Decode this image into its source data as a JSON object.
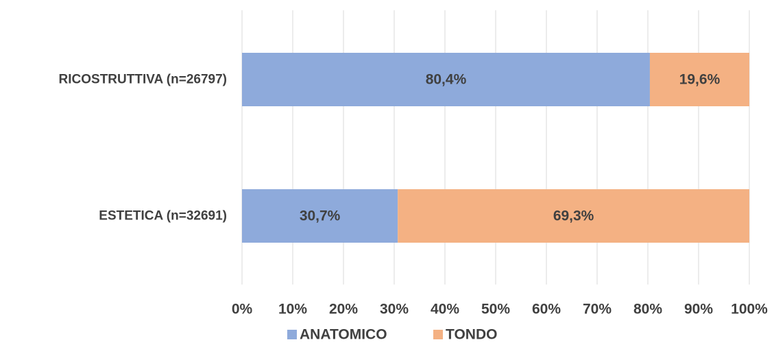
{
  "chart_data": {
    "type": "bar",
    "orientation": "horizontal",
    "stacked": "percent",
    "categories": [
      "RICOSTRUTTIVA (n=26797)",
      "ESTETICA (n=32691)"
    ],
    "series": [
      {
        "name": "ANATOMICO",
        "color": "#8eaadb",
        "values": [
          80.4,
          30.7
        ],
        "labels": [
          "80,4%",
          "30,7%"
        ]
      },
      {
        "name": "TONDO",
        "color": "#f4b183",
        "values": [
          19.6,
          69.3
        ],
        "labels": [
          "19,6%",
          "69,3%"
        ]
      }
    ],
    "xlim": [
      0,
      100
    ],
    "xticks": [
      "0%",
      "10%",
      "20%",
      "30%",
      "40%",
      "50%",
      "60%",
      "70%",
      "80%",
      "90%",
      "100%"
    ],
    "grid": true,
    "legend": "bottom",
    "title": "",
    "xlabel": "",
    "ylabel": ""
  }
}
